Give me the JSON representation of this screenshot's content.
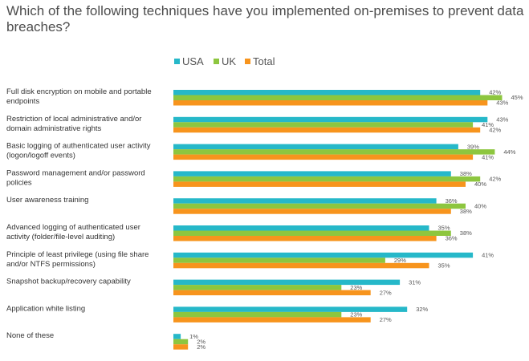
{
  "chart_data": {
    "type": "bar",
    "orientation": "horizontal",
    "title": "Which of the following techniques have you implemented on-premises to prevent data breaches?",
    "legend_position": "top-right",
    "xlim": [
      0,
      50
    ],
    "grid": false,
    "categories": [
      [
        "Full disk encryption on mobile and portable",
        "endpoints"
      ],
      [
        "Restriction of local administrative and/or",
        "domain administrative rights"
      ],
      [
        "Basic logging of authenticated user activity",
        "(logon/logoff events)"
      ],
      [
        "Password management and/or password",
        "policies"
      ],
      [
        "User awareness training"
      ],
      [
        "Advanced logging of authenticated user",
        "activity (folder/file-level auditing)"
      ],
      [
        "Principle of least privilege (using file share",
        "and/or NTFS permissions)"
      ],
      [
        "Snapshot backup/recovery capability"
      ],
      [
        "Application white listing"
      ],
      [
        "None of these"
      ]
    ],
    "series": [
      {
        "name": "USA",
        "color": "#26b8c9",
        "values": [
          42,
          43,
          39,
          38,
          36,
          35,
          41,
          31,
          32,
          1
        ]
      },
      {
        "name": "UK",
        "color": "#8dc63f",
        "values": [
          45,
          41,
          44,
          42,
          40,
          38,
          29,
          23,
          23,
          2
        ]
      },
      {
        "name": "Total",
        "color": "#f7941d",
        "values": [
          43,
          42,
          41,
          40,
          38,
          36,
          35,
          27,
          27,
          2
        ]
      }
    ],
    "value_suffix": "%"
  }
}
